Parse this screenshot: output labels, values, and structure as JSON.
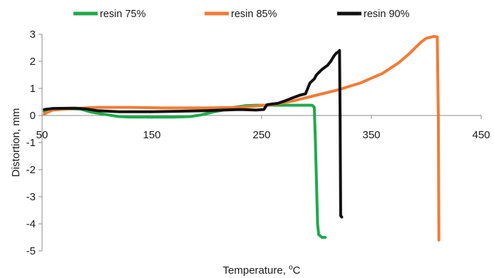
{
  "chart_data": {
    "type": "line",
    "xlabel": "Temperature, oC",
    "xlabel_main": "Temperature, ",
    "xlabel_sup": "o",
    "xlabel_unit": "C",
    "ylabel": "Distortion, mm",
    "xlim": [
      50,
      450
    ],
    "ylim": [
      -5,
      3
    ],
    "x_ticks": [
      50,
      150,
      250,
      350,
      450
    ],
    "y_ticks": [
      3,
      2,
      1,
      0,
      -1,
      -2,
      -3,
      -4,
      -5
    ],
    "grid": false,
    "legend_position": "top",
    "series": [
      {
        "name": "resin 75%",
        "color": "#1faa4a",
        "points": [
          [
            52,
            0.15
          ],
          [
            60,
            0.22
          ],
          [
            70,
            0.24
          ],
          [
            85,
            0.24
          ],
          [
            95,
            0.12
          ],
          [
            110,
            0.02
          ],
          [
            120,
            -0.04
          ],
          [
            130,
            -0.06
          ],
          [
            150,
            -0.06
          ],
          [
            170,
            -0.06
          ],
          [
            185,
            -0.04
          ],
          [
            195,
            0.02
          ],
          [
            205,
            0.12
          ],
          [
            215,
            0.2
          ],
          [
            225,
            0.3
          ],
          [
            235,
            0.36
          ],
          [
            245,
            0.38
          ],
          [
            260,
            0.38
          ],
          [
            280,
            0.38
          ],
          [
            296,
            0.38
          ],
          [
            298,
            0.3
          ],
          [
            299,
            -1.0
          ],
          [
            300,
            -2.5
          ],
          [
            301,
            -4.0
          ],
          [
            302,
            -4.4
          ],
          [
            305,
            -4.5
          ],
          [
            308,
            -4.5
          ]
        ]
      },
      {
        "name": "resin 85%",
        "color": "#f27b35",
        "points": [
          [
            52,
            0.05
          ],
          [
            55,
            0.12
          ],
          [
            60,
            0.2
          ],
          [
            80,
            0.26
          ],
          [
            100,
            0.3
          ],
          [
            130,
            0.3
          ],
          [
            160,
            0.28
          ],
          [
            200,
            0.28
          ],
          [
            230,
            0.3
          ],
          [
            260,
            0.4
          ],
          [
            280,
            0.55
          ],
          [
            300,
            0.75
          ],
          [
            320,
            0.95
          ],
          [
            340,
            1.2
          ],
          [
            360,
            1.55
          ],
          [
            375,
            1.95
          ],
          [
            385,
            2.3
          ],
          [
            395,
            2.7
          ],
          [
            400,
            2.85
          ],
          [
            407,
            2.92
          ],
          [
            410,
            2.9
          ],
          [
            411,
            0.0
          ],
          [
            411.5,
            -4.6
          ]
        ]
      },
      {
        "name": "resin 90%",
        "color": "#111111",
        "points": [
          [
            52,
            0.22
          ],
          [
            60,
            0.26
          ],
          [
            80,
            0.27
          ],
          [
            90,
            0.24
          ],
          [
            100,
            0.18
          ],
          [
            120,
            0.14
          ],
          [
            150,
            0.14
          ],
          [
            180,
            0.16
          ],
          [
            200,
            0.18
          ],
          [
            215,
            0.2
          ],
          [
            230,
            0.22
          ],
          [
            245,
            0.2
          ],
          [
            252,
            0.22
          ],
          [
            255,
            0.4
          ],
          [
            265,
            0.45
          ],
          [
            272,
            0.55
          ],
          [
            280,
            0.68
          ],
          [
            285,
            0.75
          ],
          [
            290,
            0.8
          ],
          [
            292,
            1.0
          ],
          [
            294,
            1.2
          ],
          [
            298,
            1.35
          ],
          [
            300,
            1.5
          ],
          [
            305,
            1.7
          ],
          [
            310,
            1.85
          ],
          [
            313,
            2.0
          ],
          [
            316,
            2.2
          ],
          [
            318,
            2.3
          ],
          [
            320,
            2.35
          ],
          [
            321,
            2.4
          ],
          [
            321.5,
            0.0
          ],
          [
            322,
            -3.7
          ],
          [
            323,
            -3.75
          ]
        ]
      }
    ]
  }
}
